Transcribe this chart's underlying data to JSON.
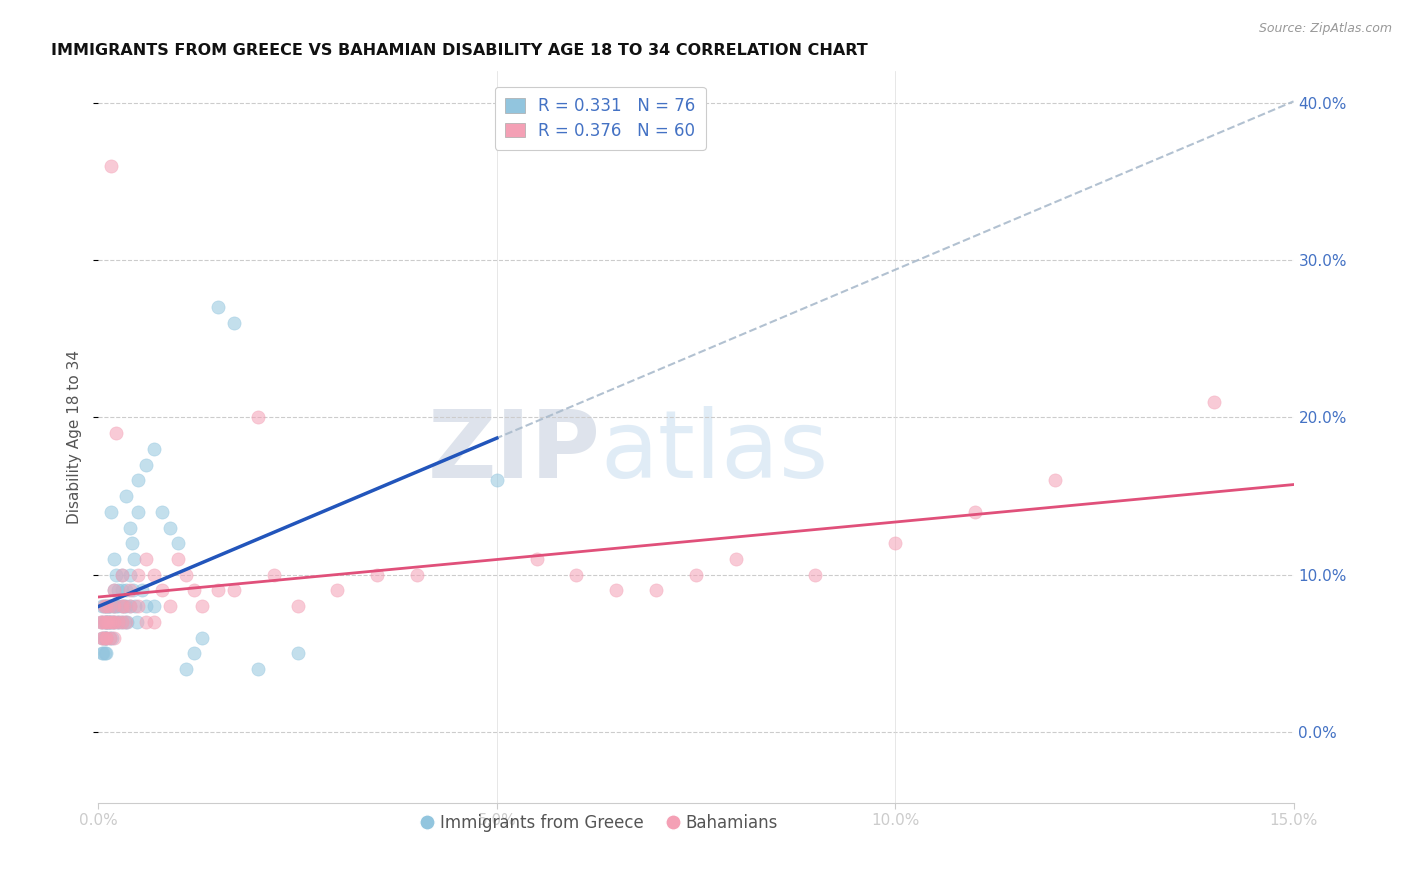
{
  "title": "IMMIGRANTS FROM GREECE VS BAHAMIAN DISABILITY AGE 18 TO 34 CORRELATION CHART",
  "source": "Source: ZipAtlas.com",
  "ylabel_label": "Disability Age 18 to 34",
  "xmin": 0.0,
  "xmax": 0.15,
  "ymin": -0.045,
  "ymax": 0.42,
  "legend1_R": "0.331",
  "legend1_N": "76",
  "legend2_R": "0.376",
  "legend2_N": "60",
  "blue_color": "#92c5de",
  "pink_color": "#f4a0b5",
  "trend_blue": "#2255bb",
  "trend_pink": "#e0507a",
  "trend_dashed_color": "#aabbcc",
  "watermark_zip": "ZIP",
  "watermark_atlas": "atlas",
  "greece_x": [
    0.0003,
    0.0004,
    0.0005,
    0.0005,
    0.0006,
    0.0006,
    0.0007,
    0.0007,
    0.0008,
    0.0008,
    0.0009,
    0.0009,
    0.001,
    0.001,
    0.001,
    0.001,
    0.001,
    0.001,
    0.0012,
    0.0012,
    0.0013,
    0.0013,
    0.0014,
    0.0015,
    0.0015,
    0.0016,
    0.0016,
    0.0017,
    0.0018,
    0.0018,
    0.002,
    0.002,
    0.002,
    0.002,
    0.0022,
    0.0022,
    0.0023,
    0.0025,
    0.0025,
    0.0026,
    0.003,
    0.003,
    0.003,
    0.003,
    0.0032,
    0.0033,
    0.0034,
    0.0035,
    0.0035,
    0.0036,
    0.004,
    0.004,
    0.004,
    0.0042,
    0.0043,
    0.0045,
    0.0046,
    0.0048,
    0.005,
    0.005,
    0.0055,
    0.006,
    0.006,
    0.007,
    0.007,
    0.008,
    0.009,
    0.01,
    0.011,
    0.012,
    0.013,
    0.015,
    0.017,
    0.02,
    0.025,
    0.05
  ],
  "greece_y": [
    0.07,
    0.05,
    0.06,
    0.08,
    0.05,
    0.07,
    0.06,
    0.08,
    0.05,
    0.06,
    0.07,
    0.08,
    0.06,
    0.07,
    0.05,
    0.08,
    0.06,
    0.07,
    0.07,
    0.08,
    0.07,
    0.08,
    0.06,
    0.07,
    0.08,
    0.14,
    0.07,
    0.06,
    0.08,
    0.07,
    0.09,
    0.07,
    0.11,
    0.08,
    0.1,
    0.08,
    0.07,
    0.09,
    0.08,
    0.07,
    0.1,
    0.08,
    0.09,
    0.07,
    0.08,
    0.07,
    0.15,
    0.09,
    0.08,
    0.07,
    0.13,
    0.1,
    0.08,
    0.12,
    0.09,
    0.11,
    0.08,
    0.07,
    0.14,
    0.16,
    0.09,
    0.17,
    0.08,
    0.18,
    0.08,
    0.14,
    0.13,
    0.12,
    0.04,
    0.05,
    0.06,
    0.27,
    0.26,
    0.04,
    0.05,
    0.16
  ],
  "bahamas_x": [
    0.0003,
    0.0004,
    0.0005,
    0.0006,
    0.0007,
    0.0008,
    0.0009,
    0.001,
    0.001,
    0.001,
    0.0012,
    0.0013,
    0.0014,
    0.0015,
    0.0016,
    0.0018,
    0.002,
    0.002,
    0.002,
    0.002,
    0.0022,
    0.0025,
    0.003,
    0.003,
    0.003,
    0.0032,
    0.0035,
    0.004,
    0.004,
    0.005,
    0.005,
    0.006,
    0.006,
    0.007,
    0.007,
    0.008,
    0.009,
    0.01,
    0.011,
    0.012,
    0.013,
    0.015,
    0.017,
    0.02,
    0.022,
    0.025,
    0.03,
    0.035,
    0.04,
    0.055,
    0.06,
    0.065,
    0.07,
    0.075,
    0.08,
    0.09,
    0.1,
    0.11,
    0.12,
    0.14
  ],
  "bahamas_y": [
    0.07,
    0.06,
    0.07,
    0.06,
    0.08,
    0.07,
    0.06,
    0.07,
    0.08,
    0.06,
    0.07,
    0.08,
    0.07,
    0.06,
    0.36,
    0.07,
    0.08,
    0.09,
    0.07,
    0.06,
    0.19,
    0.07,
    0.08,
    0.1,
    0.07,
    0.08,
    0.07,
    0.09,
    0.08,
    0.1,
    0.08,
    0.11,
    0.07,
    0.1,
    0.07,
    0.09,
    0.08,
    0.11,
    0.1,
    0.09,
    0.08,
    0.09,
    0.09,
    0.2,
    0.1,
    0.08,
    0.09,
    0.1,
    0.1,
    0.11,
    0.1,
    0.09,
    0.09,
    0.1,
    0.11,
    0.1,
    0.12,
    0.14,
    0.16,
    0.21
  ]
}
